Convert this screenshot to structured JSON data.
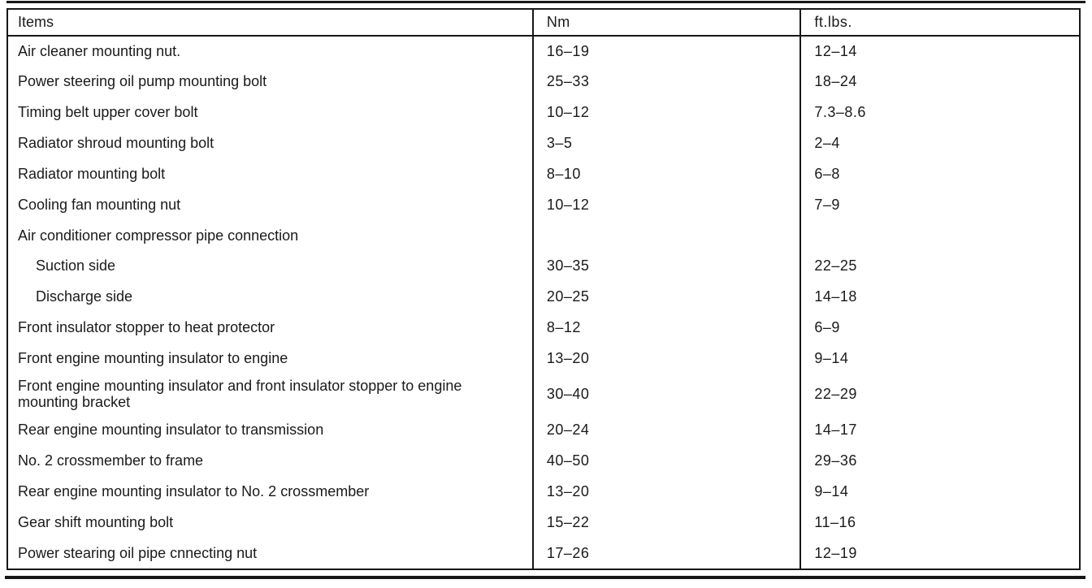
{
  "document": {
    "background": "#ffffff",
    "ink": "#1a1a1a"
  },
  "table": {
    "headers": {
      "items": "Items",
      "nm": "Nm",
      "ftlbs": "ft.lbs."
    },
    "rows": [
      {
        "item": "Air cleaner mounting nut.",
        "nm": "16–19",
        "ftlbs": "12–14",
        "indent": false
      },
      {
        "item": "Power steering oil pump mounting bolt",
        "nm": "25–33",
        "ftlbs": "18–24",
        "indent": false
      },
      {
        "item": "Timing belt upper cover bolt",
        "nm": "10–12",
        "ftlbs": "7.3–8.6",
        "indent": false
      },
      {
        "item": "Radiator shroud mounting bolt",
        "nm": "3–5",
        "ftlbs": "2–4",
        "indent": false
      },
      {
        "item": "Radiator mounting bolt",
        "nm": "8–10",
        "ftlbs": "6–8",
        "indent": false
      },
      {
        "item": "Cooling fan mounting nut",
        "nm": "10–12",
        "ftlbs": "7–9",
        "indent": false
      },
      {
        "item": "Air conditioner compressor pipe connection",
        "nm": "",
        "ftlbs": "",
        "indent": false
      },
      {
        "item": "Suction side",
        "nm": "30–35",
        "ftlbs": "22–25",
        "indent": true
      },
      {
        "item": "Discharge side",
        "nm": "20–25",
        "ftlbs": "14–18",
        "indent": true
      },
      {
        "item": "Front insulator stopper to heat protector",
        "nm": "8–12",
        "ftlbs": "6–9",
        "indent": false
      },
      {
        "item": "Front engine mounting insulator to engine",
        "nm": "13–20",
        "ftlbs": "9–14",
        "indent": false
      },
      {
        "item": "Front engine mounting insulator and front insulator stopper to engine mounting bracket",
        "nm": "30–40",
        "ftlbs": "22–29",
        "indent": false
      },
      {
        "item": "Rear engine mounting insulator to transmission",
        "nm": "20–24",
        "ftlbs": "14–17",
        "indent": false
      },
      {
        "item": "No. 2 crossmember to frame",
        "nm": "40–50",
        "ftlbs": "29–36",
        "indent": false
      },
      {
        "item": "Rear engine mounting insulator to No. 2 crossmember",
        "nm": "13–20",
        "ftlbs": "9–14",
        "indent": false
      },
      {
        "item": "Gear shift mounting bolt",
        "nm": "15–22",
        "ftlbs": "11–16",
        "indent": false
      },
      {
        "item": "Power stearing oil pipe cnnecting nut",
        "nm": "17–26",
        "ftlbs": "12–19",
        "indent": false
      }
    ]
  }
}
